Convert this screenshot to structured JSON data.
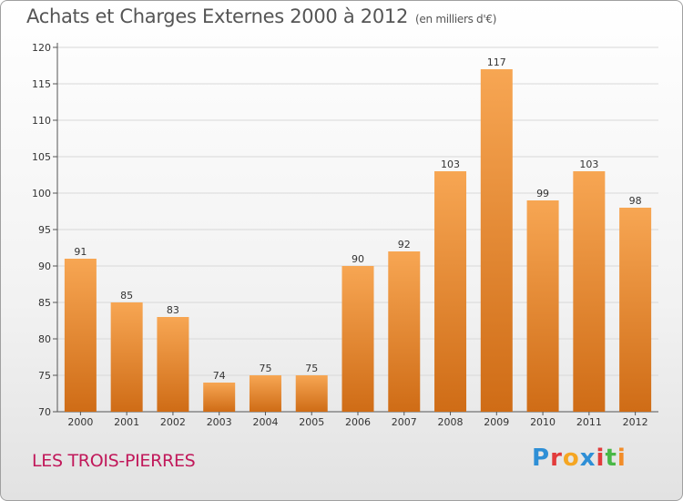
{
  "header": {
    "title": "Achats et Charges Externes 2000 à 2012",
    "unit": "(en milliers d'€)"
  },
  "footer": {
    "city": "LES TROIS-PIERRES",
    "logo": "Proxiti"
  },
  "colors": {
    "bar_top": "#f7a653",
    "bar_bottom": "#cf6c16",
    "city": "#c1185a",
    "grid": "#d8d8d8"
  },
  "chart_data": {
    "type": "bar",
    "title": "Achats et Charges Externes 2000 à 2012",
    "subtitle": "(en milliers d'€)",
    "xlabel": "",
    "ylabel": "",
    "categories": [
      "2000",
      "2001",
      "2002",
      "2003",
      "2004",
      "2005",
      "2006",
      "2007",
      "2008",
      "2009",
      "2010",
      "2011",
      "2012"
    ],
    "values": [
      91,
      85,
      83,
      74,
      75,
      75,
      90,
      92,
      103,
      117,
      99,
      103,
      98
    ],
    "ylim": [
      70,
      120
    ],
    "yticks": [
      70,
      75,
      80,
      85,
      90,
      95,
      100,
      105,
      110,
      115,
      120
    ],
    "grid": true,
    "data_labels": true
  }
}
